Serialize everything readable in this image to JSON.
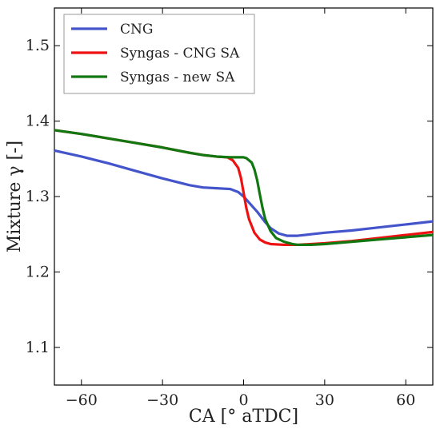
{
  "chart_data": {
    "type": "line",
    "xlabel": "CA [° aTDC]",
    "ylabel": "Mixture γ [-]",
    "xlim": [
      -70,
      70
    ],
    "ylim": [
      1.05,
      1.55
    ],
    "xticks": [
      -60,
      -30,
      0,
      30,
      60
    ],
    "xtick_labels": [
      "−60",
      "−30",
      "0",
      "30",
      "60"
    ],
    "yticks": [
      1.1,
      1.2,
      1.3,
      1.4,
      1.5
    ],
    "ytick_labels": [
      "1.1",
      "1.2",
      "1.3",
      "1.4",
      "1.5"
    ],
    "grid": false,
    "legend_position": "top-left",
    "series": [
      {
        "name": "CNG",
        "color": "#4455cc",
        "x": [
          -70,
          -60,
          -50,
          -40,
          -30,
          -20,
          -15,
          -10,
          -5,
          -2,
          0,
          2,
          5,
          8,
          10,
          13,
          16,
          20,
          25,
          30,
          40,
          50,
          60,
          70
        ],
        "y": [
          1.361,
          1.353,
          1.344,
          1.334,
          1.324,
          1.315,
          1.312,
          1.311,
          1.31,
          1.306,
          1.3,
          1.292,
          1.28,
          1.266,
          1.258,
          1.251,
          1.248,
          1.248,
          1.25,
          1.252,
          1.255,
          1.259,
          1.263,
          1.267
        ]
      },
      {
        "name": "Syngas - CNG SA",
        "color": "#ee1111",
        "x": [
          -70,
          -60,
          -50,
          -40,
          -30,
          -20,
          -15,
          -10,
          -6,
          -4,
          -2,
          -1,
          0,
          1,
          2,
          4,
          6,
          8,
          10,
          15,
          20,
          30,
          40,
          50,
          60,
          70
        ],
        "y": [
          1.388,
          1.383,
          1.377,
          1.371,
          1.365,
          1.358,
          1.355,
          1.353,
          1.352,
          1.348,
          1.338,
          1.325,
          1.305,
          1.285,
          1.27,
          1.252,
          1.243,
          1.239,
          1.237,
          1.236,
          1.236,
          1.238,
          1.241,
          1.245,
          1.249,
          1.253
        ]
      },
      {
        "name": "Syngas - new SA",
        "color": "#117711",
        "x": [
          -70,
          -60,
          -50,
          -40,
          -30,
          -20,
          -15,
          -10,
          -5,
          0,
          1,
          3,
          4,
          5,
          6,
          7,
          8,
          10,
          12,
          15,
          18,
          20,
          25,
          30,
          40,
          50,
          60,
          70
        ],
        "y": [
          1.388,
          1.383,
          1.377,
          1.371,
          1.365,
          1.358,
          1.355,
          1.353,
          1.352,
          1.352,
          1.351,
          1.345,
          1.336,
          1.322,
          1.303,
          1.285,
          1.27,
          1.254,
          1.245,
          1.24,
          1.237,
          1.236,
          1.236,
          1.237,
          1.24,
          1.243,
          1.246,
          1.249
        ]
      }
    ]
  }
}
